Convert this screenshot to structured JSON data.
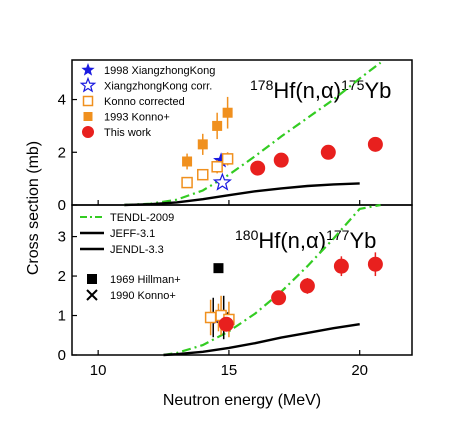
{
  "chart_data": [
    {
      "panel": "top",
      "type": "scatter",
      "title": "",
      "reaction": {
        "a": "178",
        "b": "Hf(n,α)",
        "c": "175",
        "d": "Yb"
      },
      "ylabel": "Cross section (mb)",
      "xlabel": "Neutron energy (MeV)",
      "xlim": [
        9,
        22
      ],
      "ylim": [
        0,
        5.5
      ],
      "yticks": [
        0,
        2,
        4
      ],
      "series": [
        {
          "name": "1998 XiangzhongKong",
          "marker": "star-filled",
          "color": "#1a1ae0",
          "points": [
            {
              "x": 14.7,
              "y": 1.68,
              "err": 0.2
            }
          ]
        },
        {
          "name": "XiangzhongKong corr.",
          "marker": "star-open",
          "color": "#1a1ae0",
          "points": [
            {
              "x": 14.75,
              "y": 0.85,
              "err": 0.1
            }
          ]
        },
        {
          "name": "Konno corrected",
          "marker": "square-open",
          "color": "#f0901e",
          "points": [
            {
              "x": 13.4,
              "y": 0.85,
              "err": 0.15
            },
            {
              "x": 14.0,
              "y": 1.15,
              "err": 0.2
            },
            {
              "x": 14.55,
              "y": 1.45,
              "err": 0.25
            },
            {
              "x": 14.95,
              "y": 1.75,
              "err": 0.25
            }
          ]
        },
        {
          "name": "1993 Konno+",
          "marker": "square-filled",
          "color": "#f0901e",
          "points": [
            {
              "x": 13.4,
              "y": 1.65,
              "err": 0.3
            },
            {
              "x": 14.0,
              "y": 2.3,
              "err": 0.4
            },
            {
              "x": 14.55,
              "y": 3.0,
              "err": 0.5
            },
            {
              "x": 14.95,
              "y": 3.5,
              "err": 0.6
            }
          ]
        },
        {
          "name": "This work",
          "marker": "circle-filled",
          "color": "#e8201e",
          "points": [
            {
              "x": 16.1,
              "y": 1.4,
              "err": 0.15
            },
            {
              "x": 17.0,
              "y": 1.7,
              "err": 0.15
            },
            {
              "x": 18.8,
              "y": 2.0,
              "err": 0.2
            },
            {
              "x": 20.6,
              "y": 2.3,
              "err": 0.25
            }
          ]
        }
      ],
      "curves": [
        {
          "name": "TENDL-2009",
          "style": "dash-dot",
          "color": "#33cc22",
          "x": [
            11,
            12,
            13,
            14,
            15,
            16,
            17,
            18,
            19,
            20,
            20.8
          ],
          "y": [
            0.0,
            0.05,
            0.2,
            0.55,
            1.15,
            1.85,
            2.6,
            3.3,
            4.0,
            4.8,
            5.4
          ]
        },
        {
          "name": "JEFF-3.1",
          "style": "solid",
          "color": "#000000",
          "x": [
            11,
            12,
            13,
            14,
            15,
            16,
            17,
            18,
            19,
            20
          ],
          "y": [
            0.0,
            0.03,
            0.1,
            0.22,
            0.37,
            0.52,
            0.63,
            0.72,
            0.78,
            0.82
          ]
        }
      ]
    },
    {
      "panel": "bottom",
      "type": "scatter",
      "title": "",
      "reaction": {
        "a": "180",
        "b": "Hf(n,α)",
        "c": "177",
        "d": "Yb"
      },
      "ylabel": "Cross section (mb)",
      "xlabel": "Neutron energy (MeV)",
      "xlim": [
        9,
        22
      ],
      "ylim": [
        0,
        3.8
      ],
      "yticks": [
        0,
        1,
        2,
        3
      ],
      "xticks": [
        10,
        15,
        20
      ],
      "series": [
        {
          "name": "1969 Hillman+",
          "marker": "square-filled",
          "color": "#000000",
          "points": [
            {
              "x": 14.6,
              "y": 2.2,
              "err": 0.1
            }
          ]
        },
        {
          "name": "1990 Konno+",
          "marker": "cross",
          "color": "#000000",
          "points": [
            {
              "x": 14.4,
              "y": 0.95,
              "err": 0.5
            },
            {
              "x": 14.8,
              "y": 0.95,
              "err": 0.55
            }
          ]
        },
        {
          "name": "1998 XiangzhongKong",
          "marker": "star-filled",
          "color": "#1a1ae0",
          "points": [
            {
              "x": 14.6,
              "y": 0.95,
              "err": 0.35
            }
          ]
        },
        {
          "name": "Konno corrected",
          "marker": "square-open",
          "color": "#f0901e",
          "points": [
            {
              "x": 14.3,
              "y": 0.95,
              "err": 0.45
            },
            {
              "x": 14.7,
              "y": 1.0,
              "err": 0.5
            },
            {
              "x": 15.0,
              "y": 0.9,
              "err": 0.45
            }
          ]
        },
        {
          "name": "This work",
          "marker": "circle-filled",
          "color": "#e8201e",
          "points": [
            {
              "x": 14.9,
              "y": 0.78,
              "err": 0.15
            },
            {
              "x": 16.9,
              "y": 1.45,
              "err": 0.15
            },
            {
              "x": 18.0,
              "y": 1.75,
              "err": 0.2
            },
            {
              "x": 19.3,
              "y": 2.25,
              "err": 0.25
            },
            {
              "x": 20.6,
              "y": 2.3,
              "err": 0.3
            }
          ]
        }
      ],
      "curves": [
        {
          "name": "TENDL-2009",
          "style": "dash-dot",
          "color": "#33cc22",
          "x": [
            12.5,
            13,
            14,
            15,
            16,
            17,
            18,
            19,
            20,
            20.8
          ],
          "y": [
            0.0,
            0.05,
            0.25,
            0.6,
            1.05,
            1.6,
            2.25,
            2.95,
            3.7,
            4.3
          ]
        },
        {
          "name": "JEFF-3.1",
          "style": "solid",
          "color": "#000000",
          "x": [
            12.5,
            13,
            14,
            15,
            16,
            17,
            18,
            19,
            20
          ],
          "y": [
            0.0,
            0.02,
            0.08,
            0.18,
            0.3,
            0.44,
            0.56,
            0.68,
            0.78
          ]
        }
      ]
    }
  ],
  "legend_top": [
    {
      "label": "1998 XiangzhongKong",
      "marker": "star-filled",
      "color": "#1a1ae0"
    },
    {
      "label": "XiangzhongKong corr.",
      "marker": "star-open",
      "color": "#1a1ae0"
    },
    {
      "label": "Konno corrected",
      "marker": "square-open",
      "color": "#f0901e"
    },
    {
      "label": "1993 Konno+",
      "marker": "square-filled",
      "color": "#f0901e"
    },
    {
      "label": "This work",
      "marker": "circle-filled",
      "color": "#e8201e"
    }
  ],
  "legend_bottom": [
    {
      "label": "TENDL-2009",
      "line": "dash-dot",
      "color": "#33cc22"
    },
    {
      "label": "JEFF-3.1",
      "line": "solid",
      "color": "#000000"
    },
    {
      "label": "JENDL-3.3",
      "line": "solid",
      "color": "#000000"
    },
    {
      "label": "1969 Hillman+",
      "marker": "square-filled",
      "color": "#000000"
    },
    {
      "label": "1990 Konno+",
      "marker": "cross",
      "color": "#000000"
    }
  ]
}
